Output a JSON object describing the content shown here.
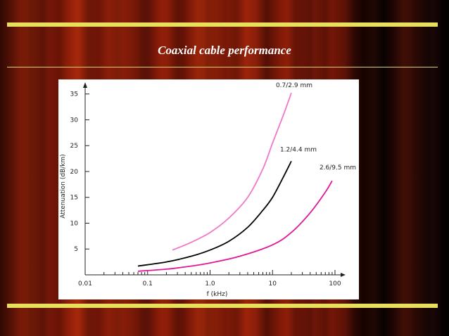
{
  "slide": {
    "title": "Coaxial cable performance"
  },
  "colors": {
    "curve_small": "#f078c8",
    "curve_medium": "#000000",
    "curve_large": "#e0189a",
    "accent_bar": "#e8e05a"
  },
  "chart_data": {
    "type": "line",
    "title": "",
    "xlabel": "f (kHz)",
    "ylabel": "Attenuation (dB/km)",
    "xscale": "log",
    "xlim": [
      0.01,
      100
    ],
    "ylim": [
      0,
      37
    ],
    "xticks": [
      {
        "value": 0.01,
        "label": "0.01"
      },
      {
        "value": 0.1,
        "label": "0.1"
      },
      {
        "value": 1,
        "label": "1.0"
      },
      {
        "value": 10,
        "label": "10"
      },
      {
        "value": 100,
        "label": "100"
      }
    ],
    "yticks": [
      {
        "value": 5,
        "label": "5"
      },
      {
        "value": 10,
        "label": "10"
      },
      {
        "value": 15,
        "label": "15"
      },
      {
        "value": 20,
        "label": "20"
      },
      {
        "value": 25,
        "label": "25"
      },
      {
        "value": 30,
        "label": "30"
      },
      {
        "value": 35,
        "label": "35"
      }
    ],
    "grid": false,
    "series": [
      {
        "name": "0.7/2.9 mm",
        "color": "#f078c8",
        "points": [
          [
            0.25,
            4.8
          ],
          [
            0.5,
            6.3
          ],
          [
            1,
            8.2
          ],
          [
            2,
            11
          ],
          [
            4,
            15
          ],
          [
            7,
            20.5
          ],
          [
            10,
            25.5
          ],
          [
            15,
            31
          ],
          [
            20,
            35.2
          ]
        ]
      },
      {
        "name": "1.2/4.4 mm",
        "color": "#000000",
        "points": [
          [
            0.07,
            1.7
          ],
          [
            0.2,
            2.5
          ],
          [
            0.5,
            3.6
          ],
          [
            1,
            4.8
          ],
          [
            2,
            6.5
          ],
          [
            4,
            9.2
          ],
          [
            7,
            12.5
          ],
          [
            10,
            15
          ],
          [
            15,
            19
          ],
          [
            20,
            22
          ]
        ]
      },
      {
        "name": "2.6/9.5 mm",
        "color": "#e0189a",
        "points": [
          [
            0.07,
            0.7
          ],
          [
            0.2,
            1.1
          ],
          [
            0.5,
            1.7
          ],
          [
            1,
            2.3
          ],
          [
            3,
            3.6
          ],
          [
            10,
            5.8
          ],
          [
            20,
            8.2
          ],
          [
            40,
            12
          ],
          [
            70,
            16
          ],
          [
            90,
            18.2
          ]
        ]
      }
    ]
  }
}
